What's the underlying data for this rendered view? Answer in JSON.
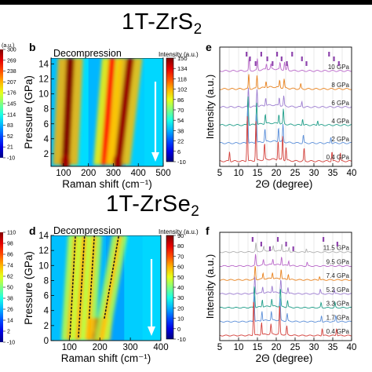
{
  "titles": {
    "top": {
      "base": "1T-ZrS",
      "sub": "2"
    },
    "bottom": {
      "base": "1T-ZrSe",
      "sub": "2"
    }
  },
  "panel_labels": {
    "b": "b",
    "d": "d",
    "e": "e",
    "f": "f"
  },
  "chart_data": [
    {
      "id": "b",
      "type": "heatmap",
      "title": "Decompression",
      "xlabel": "Raman shift (cm⁻¹)",
      "ylabel": "Pressure (GPa)",
      "xlim": [
        50,
        500
      ],
      "ylim": [
        0.3,
        14.8
      ],
      "xticks": [
        100,
        200,
        300,
        400,
        500
      ],
      "yticks": [
        2,
        4,
        6,
        8,
        10,
        12,
        14
      ],
      "colorbar": {
        "label": "Intensity (a.u.)",
        "ticks": [
          "150",
          "134",
          "118",
          "102",
          "86",
          "70",
          "54",
          "38",
          "22",
          "6",
          "-10"
        ]
      },
      "left_colorbar_ticks": {
        "label": "(a.u.)",
        "ticks": [
          "300",
          "269",
          "238",
          "207",
          "176",
          "145",
          "114",
          "83",
          "52",
          "21",
          "-10"
        ]
      },
      "peaks": [
        {
          "pressure": [
            0.5,
            14.8
          ],
          "shift": [
            108,
            128
          ],
          "strength": 1.0
        },
        {
          "pressure": [
            0.5,
            14.8
          ],
          "shift": [
            262,
            296
          ],
          "strength": 0.7
        },
        {
          "pressure": [
            0.5,
            14.8
          ],
          "shift": [
            318,
            368
          ],
          "strength": 0.95
        }
      ],
      "arrow": "down"
    },
    {
      "id": "d",
      "type": "heatmap",
      "title": "Decompression",
      "xlabel": "Raman shift (cm⁻¹)",
      "ylabel": "Pressure (GPa)",
      "xlim": [
        40,
        400
      ],
      "ylim": [
        0,
        14
      ],
      "xticks": [
        100,
        200,
        300,
        400
      ],
      "yticks": [
        0,
        2,
        4,
        6,
        8,
        10,
        12,
        14
      ],
      "colorbar": {
        "label": "Intensity (a.u.)",
        "ticks": [
          "90",
          "80",
          "70",
          "60",
          "50",
          "40",
          "30",
          "20",
          "10",
          "0",
          "-10"
        ]
      },
      "left_colorbar_ticks": {
        "label": "",
        "ticks": [
          "110",
          "98",
          "86",
          "74",
          "62",
          "50",
          "38",
          "26",
          "14",
          "2",
          "-10"
        ]
      },
      "peaks": [
        {
          "pressure": [
            0,
            14
          ],
          "shift": [
            100,
            122
          ],
          "strength": 0.35
        },
        {
          "pressure": [
            0,
            14
          ],
          "shift": [
            128,
            150
          ],
          "strength": 0.35
        },
        {
          "pressure": [
            0,
            14
          ],
          "shift": [
            160,
            182
          ],
          "strength": 0.3
        },
        {
          "pressure": [
            0,
            3
          ],
          "shift": [
            193,
            200
          ],
          "strength": 1.0
        },
        {
          "pressure": [
            0,
            14
          ],
          "shift": [
            205,
            265
          ],
          "strength": 0.3
        }
      ],
      "dotted_traces": [
        {
          "shift": [
            102,
            120
          ],
          "pressure": [
            0.5,
            14
          ]
        },
        {
          "shift": [
            130,
            150
          ],
          "pressure": [
            0.5,
            14
          ]
        },
        {
          "shift": [
            165,
            182
          ],
          "pressure": [
            3,
            14
          ]
        },
        {
          "shift": [
            215,
            262
          ],
          "pressure": [
            3,
            14
          ]
        }
      ],
      "arrow": "down"
    },
    {
      "id": "e",
      "type": "line",
      "xlabel": "2Θ (degree)",
      "ylabel": "Intensity (a.u.)",
      "xlim": [
        5,
        40
      ],
      "xticks": [
        5,
        10,
        15,
        20,
        25,
        30,
        35,
        40
      ],
      "series": [
        {
          "name": "10 GPa",
          "color": "#b967c9",
          "peaks": [
            [
              12.8,
              0.8
            ],
            [
              15.0,
              0.7
            ],
            [
              17.4,
              0.35
            ],
            [
              18.6,
              0.3
            ],
            [
              21.0,
              0.4
            ],
            [
              22.2,
              0.5
            ],
            [
              23.0,
              0.35
            ]
          ]
        },
        {
          "name": "8 GPa",
          "color": "#e8821e",
          "peaks": [
            [
              12.7,
              0.9
            ],
            [
              14.9,
              0.8
            ],
            [
              17.3,
              0.4
            ],
            [
              20.9,
              0.45
            ],
            [
              22.1,
              0.55
            ],
            [
              26.5,
              0.3
            ]
          ]
        },
        {
          "name": "6 GPa",
          "color": "#9c7cd0",
          "peaks": [
            [
              12.6,
              1.2
            ],
            [
              14.9,
              1.1
            ],
            [
              17.2,
              0.5
            ],
            [
              20.8,
              0.5
            ],
            [
              22.0,
              0.6
            ],
            [
              26.8,
              0.35
            ]
          ]
        },
        {
          "name": "4 GPa",
          "color": "#1f9e89",
          "peaks": [
            [
              12.5,
              1.8
            ],
            [
              14.8,
              1.4
            ],
            [
              17.1,
              0.6
            ],
            [
              20.7,
              0.6
            ],
            [
              21.9,
              0.9
            ],
            [
              27.0,
              0.4
            ],
            [
              31.0,
              0.3
            ]
          ]
        },
        {
          "name": "2 GPa",
          "color": "#5b8fd9",
          "peaks": [
            [
              12.4,
              2.2
            ],
            [
              14.7,
              1.8
            ],
            [
              17.0,
              0.8
            ],
            [
              20.6,
              0.9
            ],
            [
              21.8,
              1.1
            ],
            [
              27.2,
              0.5
            ],
            [
              34.5,
              0.4
            ]
          ]
        },
        {
          "name": "0.4 GPa",
          "color": "#d43f3a",
          "peaks": [
            [
              7.6,
              0.6
            ],
            [
              12.3,
              2.8
            ],
            [
              14.6,
              2.5
            ],
            [
              16.9,
              1.0
            ],
            [
              20.5,
              1.2
            ],
            [
              21.7,
              1.5
            ],
            [
              22.6,
              0.8
            ],
            [
              27.4,
              0.8
            ],
            [
              34.8,
              0.6
            ],
            [
              37.0,
              0.5
            ]
          ]
        }
      ],
      "tick_marks": [
        12.1,
        13.0,
        14.5,
        16.0,
        17.6,
        19.0,
        20.2,
        21.4,
        22.8,
        24.2,
        26.8,
        28.0,
        34.0,
        35.3,
        36.6
      ],
      "gridlines": [
        7.5,
        10,
        12.5,
        15,
        17.5,
        20,
        22.5,
        25,
        27.5,
        30,
        32.5,
        35,
        37.5
      ]
    },
    {
      "id": "f",
      "type": "line",
      "xlabel": "2Θ (degree)",
      "ylabel": "Intensity (a.u.)",
      "xlim": [
        5,
        40
      ],
      "xticks": [
        5,
        10,
        15,
        20,
        25,
        30,
        35,
        40
      ],
      "series": [
        {
          "name": "11.5 GPa",
          "color": "#b0b0b0",
          "peaks": [
            [
              14.6,
              0.7
            ],
            [
              16.7,
              0.35
            ],
            [
              19.2,
              0.4
            ],
            [
              21.5,
              0.6
            ],
            [
              23.4,
              0.35
            ],
            [
              28.0,
              0.3
            ]
          ]
        },
        {
          "name": "9.5 GPa",
          "color": "#b967c9",
          "peaks": [
            [
              14.5,
              0.9
            ],
            [
              16.6,
              0.4
            ],
            [
              19.1,
              0.45
            ],
            [
              21.4,
              0.7
            ],
            [
              23.3,
              0.4
            ],
            [
              28.2,
              0.3
            ]
          ]
        },
        {
          "name": "7.4 GPa",
          "color": "#e8821e",
          "peaks": [
            [
              14.4,
              1.1
            ],
            [
              16.5,
              0.45
            ],
            [
              19.0,
              0.5
            ],
            [
              21.3,
              0.8
            ],
            [
              23.2,
              0.45
            ],
            [
              31.5,
              0.3
            ]
          ]
        },
        {
          "name": "5.2 GPa",
          "color": "#9c7cd0",
          "peaks": [
            [
              14.3,
              1.4
            ],
            [
              16.4,
              0.5
            ],
            [
              18.9,
              0.55
            ],
            [
              21.2,
              1.1
            ],
            [
              23.1,
              0.5
            ],
            [
              31.7,
              0.35
            ],
            [
              35.4,
              0.35
            ]
          ]
        },
        {
          "name": "3.3 GPa",
          "color": "#1f9e89",
          "peaks": [
            [
              14.2,
              1.8
            ],
            [
              16.3,
              0.6
            ],
            [
              18.8,
              0.6
            ],
            [
              21.1,
              1.5
            ],
            [
              23.0,
              0.55
            ],
            [
              31.9,
              0.4
            ],
            [
              35.6,
              0.4
            ]
          ]
        },
        {
          "name": "1.7 GPa",
          "color": "#5b8fd9",
          "peaks": [
            [
              14.1,
              2.3
            ],
            [
              16.2,
              0.8
            ],
            [
              18.7,
              0.7
            ],
            [
              21.0,
              1.9
            ],
            [
              22.9,
              0.6
            ],
            [
              32.0,
              0.5
            ],
            [
              35.8,
              0.5
            ]
          ]
        },
        {
          "name": "0.4 GPa",
          "color": "#d43f3a",
          "peaks": [
            [
              14.0,
              2.9
            ],
            [
              16.1,
              1.0
            ],
            [
              18.6,
              0.8
            ],
            [
              20.9,
              2.4
            ],
            [
              22.8,
              0.7
            ],
            [
              32.2,
              0.6
            ],
            [
              36.0,
              0.6
            ]
          ]
        }
      ],
      "tick_marks": [
        13.7,
        16.0,
        18.3,
        20.4,
        22.6,
        24.5,
        32.5,
        36.2
      ],
      "gridlines": [
        7.5,
        10,
        12.5,
        15,
        17.5,
        20,
        22.5,
        25,
        27.5,
        30,
        32.5,
        35,
        37.5
      ]
    }
  ]
}
